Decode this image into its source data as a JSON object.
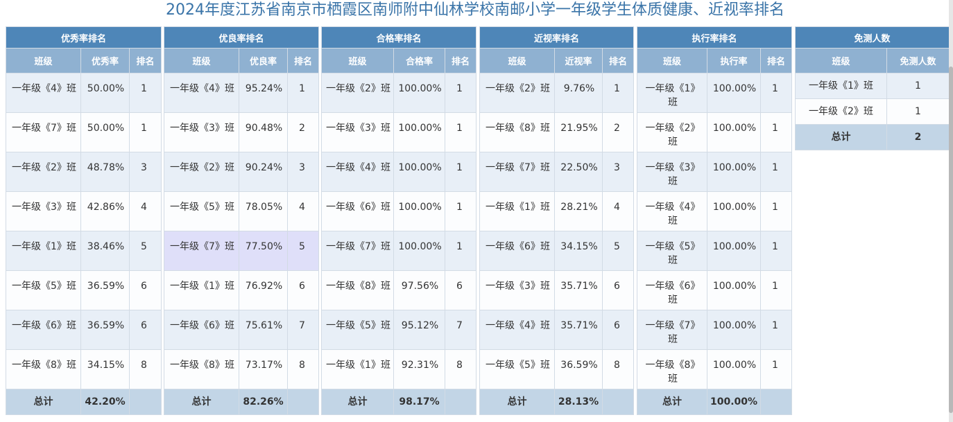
{
  "title": "2024年度江苏省南京市栖霞区南师附中仙林学校南邮小学一年级学生体质健康、近视率排名",
  "panels": [
    {
      "heading": "优秀率排名",
      "cols": [
        "班级",
        "优秀率",
        "排名"
      ],
      "rows": [
        {
          "cls": "一年级《4》班",
          "val": "50.00%",
          "rank": "1"
        },
        {
          "cls": "一年级《7》班",
          "val": "50.00%",
          "rank": "1"
        },
        {
          "cls": "一年级《2》班",
          "val": "48.78%",
          "rank": "3"
        },
        {
          "cls": "一年级《3》班",
          "val": "42.86%",
          "rank": "4"
        },
        {
          "cls": "一年级《1》班",
          "val": "38.46%",
          "rank": "5"
        },
        {
          "cls": "一年级《5》班",
          "val": "36.59%",
          "rank": "6"
        },
        {
          "cls": "一年级《6》班",
          "val": "36.59%",
          "rank": "6"
        },
        {
          "cls": "一年级《8》班",
          "val": "34.15%",
          "rank": "8"
        }
      ],
      "total_label": "总计",
      "total": "42.20%"
    },
    {
      "heading": "优良率排名",
      "cols": [
        "班级",
        "优良率",
        "排名"
      ],
      "rows": [
        {
          "cls": "一年级《4》班",
          "val": "95.24%",
          "rank": "1"
        },
        {
          "cls": "一年级《3》班",
          "val": "90.48%",
          "rank": "2"
        },
        {
          "cls": "一年级《2》班",
          "val": "90.24%",
          "rank": "3"
        },
        {
          "cls": "一年级《5》班",
          "val": "78.05%",
          "rank": "4"
        },
        {
          "cls": "一年级《7》班",
          "val": "77.50%",
          "rank": "5"
        },
        {
          "cls": "一年级《1》班",
          "val": "76.92%",
          "rank": "6"
        },
        {
          "cls": "一年级《6》班",
          "val": "75.61%",
          "rank": "7"
        },
        {
          "cls": "一年级《8》班",
          "val": "73.17%",
          "rank": "8"
        }
      ],
      "total_label": "总计",
      "total": "82.26%"
    },
    {
      "heading": "合格率排名",
      "cols": [
        "班级",
        "合格率",
        "排名"
      ],
      "rows": [
        {
          "cls": "一年级《2》班",
          "val": "100.00%",
          "rank": "1"
        },
        {
          "cls": "一年级《3》班",
          "val": "100.00%",
          "rank": "1"
        },
        {
          "cls": "一年级《4》班",
          "val": "100.00%",
          "rank": "1"
        },
        {
          "cls": "一年级《6》班",
          "val": "100.00%",
          "rank": "1"
        },
        {
          "cls": "一年级《7》班",
          "val": "100.00%",
          "rank": "1"
        },
        {
          "cls": "一年级《8》班",
          "val": "97.56%",
          "rank": "6"
        },
        {
          "cls": "一年级《5》班",
          "val": "95.12%",
          "rank": "7"
        },
        {
          "cls": "一年级《1》班",
          "val": "92.31%",
          "rank": "8"
        }
      ],
      "total_label": "总计",
      "total": "98.17%"
    },
    {
      "heading": "近视率排名",
      "cols": [
        "班级",
        "近视率",
        "排名"
      ],
      "rows": [
        {
          "cls": "一年级《2》班",
          "val": "9.76%",
          "rank": "1"
        },
        {
          "cls": "一年级《8》班",
          "val": "21.95%",
          "rank": "2"
        },
        {
          "cls": "一年级《7》班",
          "val": "22.50%",
          "rank": "3"
        },
        {
          "cls": "一年级《1》班",
          "val": "28.21%",
          "rank": "4"
        },
        {
          "cls": "一年级《6》班",
          "val": "34.15%",
          "rank": "5"
        },
        {
          "cls": "一年级《3》班",
          "val": "35.71%",
          "rank": "6"
        },
        {
          "cls": "一年级《4》班",
          "val": "35.71%",
          "rank": "6"
        },
        {
          "cls": "一年级《5》班",
          "val": "36.59%",
          "rank": "8"
        }
      ],
      "total_label": "总计",
      "total": "28.13%"
    },
    {
      "heading": "执行率排名",
      "cols": [
        "班级",
        "执行率",
        "排名"
      ],
      "rows": [
        {
          "cls": "一年级《1》班",
          "val": "100.00%",
          "rank": "1"
        },
        {
          "cls": "一年级《2》班",
          "val": "100.00%",
          "rank": "1"
        },
        {
          "cls": "一年级《3》班",
          "val": "100.00%",
          "rank": "1"
        },
        {
          "cls": "一年级《4》班",
          "val": "100.00%",
          "rank": "1"
        },
        {
          "cls": "一年级《5》班",
          "val": "100.00%",
          "rank": "1"
        },
        {
          "cls": "一年级《6》班",
          "val": "100.00%",
          "rank": "1"
        },
        {
          "cls": "一年级《7》班",
          "val": "100.00%",
          "rank": "1"
        },
        {
          "cls": "一年级《8》班",
          "val": "100.00%",
          "rank": "1"
        }
      ],
      "total_label": "总计",
      "total": "100.00%"
    }
  ],
  "exempt": {
    "heading": "免测人数",
    "cols": [
      "班级",
      "免测人数"
    ],
    "rows": [
      {
        "cls": "一年级《1》班",
        "count": "1"
      },
      {
        "cls": "一年级《2》班",
        "count": "1"
      }
    ],
    "total_label": "总计",
    "total": "2"
  }
}
